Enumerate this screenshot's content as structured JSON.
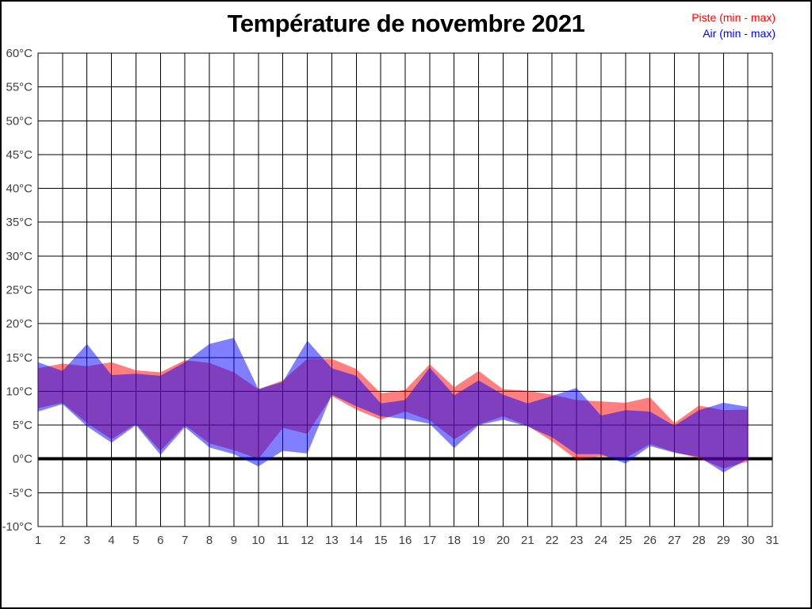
{
  "title": "Température de novembre 2021",
  "legend": {
    "piste_label": "Piste (min - max)",
    "air_label": "Air (min - max)",
    "piste_color": "#ff0000",
    "air_color": "#0000ff"
  },
  "y_axis": {
    "tick_values": [
      60,
      55,
      50,
      45,
      40,
      35,
      30,
      25,
      20,
      15,
      10,
      5,
      0,
      -5,
      -10
    ],
    "tick_labels": [
      "60°C",
      "55°C",
      "50°C",
      "45°C",
      "40°C",
      "35°C",
      "30°C",
      "25°C",
      "20°C",
      "15°C",
      "10°C",
      "5°C",
      "0°C",
      "-5°C",
      "-10°C"
    ]
  },
  "x_axis": {
    "tick_labels": [
      "1",
      "2",
      "3",
      "4",
      "5",
      "6",
      "7",
      "8",
      "9",
      "10",
      "11",
      "12",
      "13",
      "14",
      "15",
      "16",
      "17",
      "18",
      "19",
      "20",
      "21",
      "22",
      "23",
      "24",
      "25",
      "26",
      "27",
      "28",
      "29",
      "30",
      "31"
    ]
  },
  "chart_data": {
    "type": "area",
    "title": "Température de novembre 2021",
    "x": [
      1,
      2,
      3,
      4,
      5,
      6,
      7,
      8,
      9,
      10,
      11,
      12,
      13,
      14,
      15,
      16,
      17,
      18,
      19,
      20,
      21,
      22,
      23,
      24,
      25,
      26,
      27,
      28,
      29,
      30
    ],
    "xlim": [
      1,
      31
    ],
    "ylim": [
      -10,
      60
    ],
    "y_unit": "°C",
    "grid": true,
    "zero_line": 0,
    "legend_position": "top-right",
    "series": [
      {
        "name": "Piste (min - max)",
        "color": "#ff0000",
        "fill": "rgba(255,0,0,0.5)",
        "min": [
          7.5,
          8.3,
          5.3,
          2.9,
          5.2,
          1.2,
          5.0,
          2.3,
          1.3,
          0.0,
          4.6,
          3.7,
          9.3,
          7.3,
          5.8,
          7.0,
          5.7,
          2.9,
          5.1,
          6.3,
          4.9,
          2.6,
          -0.1,
          0.4,
          0.1,
          2.2,
          1.0,
          0.1,
          -1.4,
          -0.4
        ],
        "max": [
          13.4,
          14.1,
          13.7,
          14.3,
          13.1,
          12.8,
          14.6,
          14.2,
          12.8,
          10.3,
          11.6,
          14.8,
          14.8,
          13.3,
          9.7,
          10.2,
          14.0,
          10.6,
          13.0,
          10.3,
          10.1,
          9.5,
          8.7,
          8.5,
          8.3,
          9.1,
          5.3,
          7.9,
          7.2,
          7.3
        ]
      },
      {
        "name": "Air (min - max)",
        "color": "#0000ff",
        "fill": "rgba(0,0,255,0.5)",
        "min": [
          7.0,
          8.1,
          4.8,
          2.4,
          5.0,
          0.6,
          4.7,
          1.7,
          0.7,
          -1.1,
          1.2,
          0.8,
          9.5,
          7.8,
          6.3,
          5.9,
          5.2,
          1.6,
          5.0,
          5.8,
          4.8,
          3.2,
          0.7,
          0.7,
          -0.7,
          1.9,
          0.9,
          0.3,
          -2.0,
          0.0
        ],
        "max": [
          14.3,
          13.0,
          17.0,
          12.4,
          12.6,
          12.3,
          14.3,
          17.0,
          17.9,
          10.3,
          11.4,
          17.5,
          13.4,
          12.3,
          8.2,
          8.7,
          13.5,
          9.4,
          11.6,
          9.5,
          8.2,
          9.3,
          10.5,
          6.4,
          7.2,
          7.0,
          4.9,
          7.2,
          8.3,
          7.7
        ]
      }
    ]
  }
}
